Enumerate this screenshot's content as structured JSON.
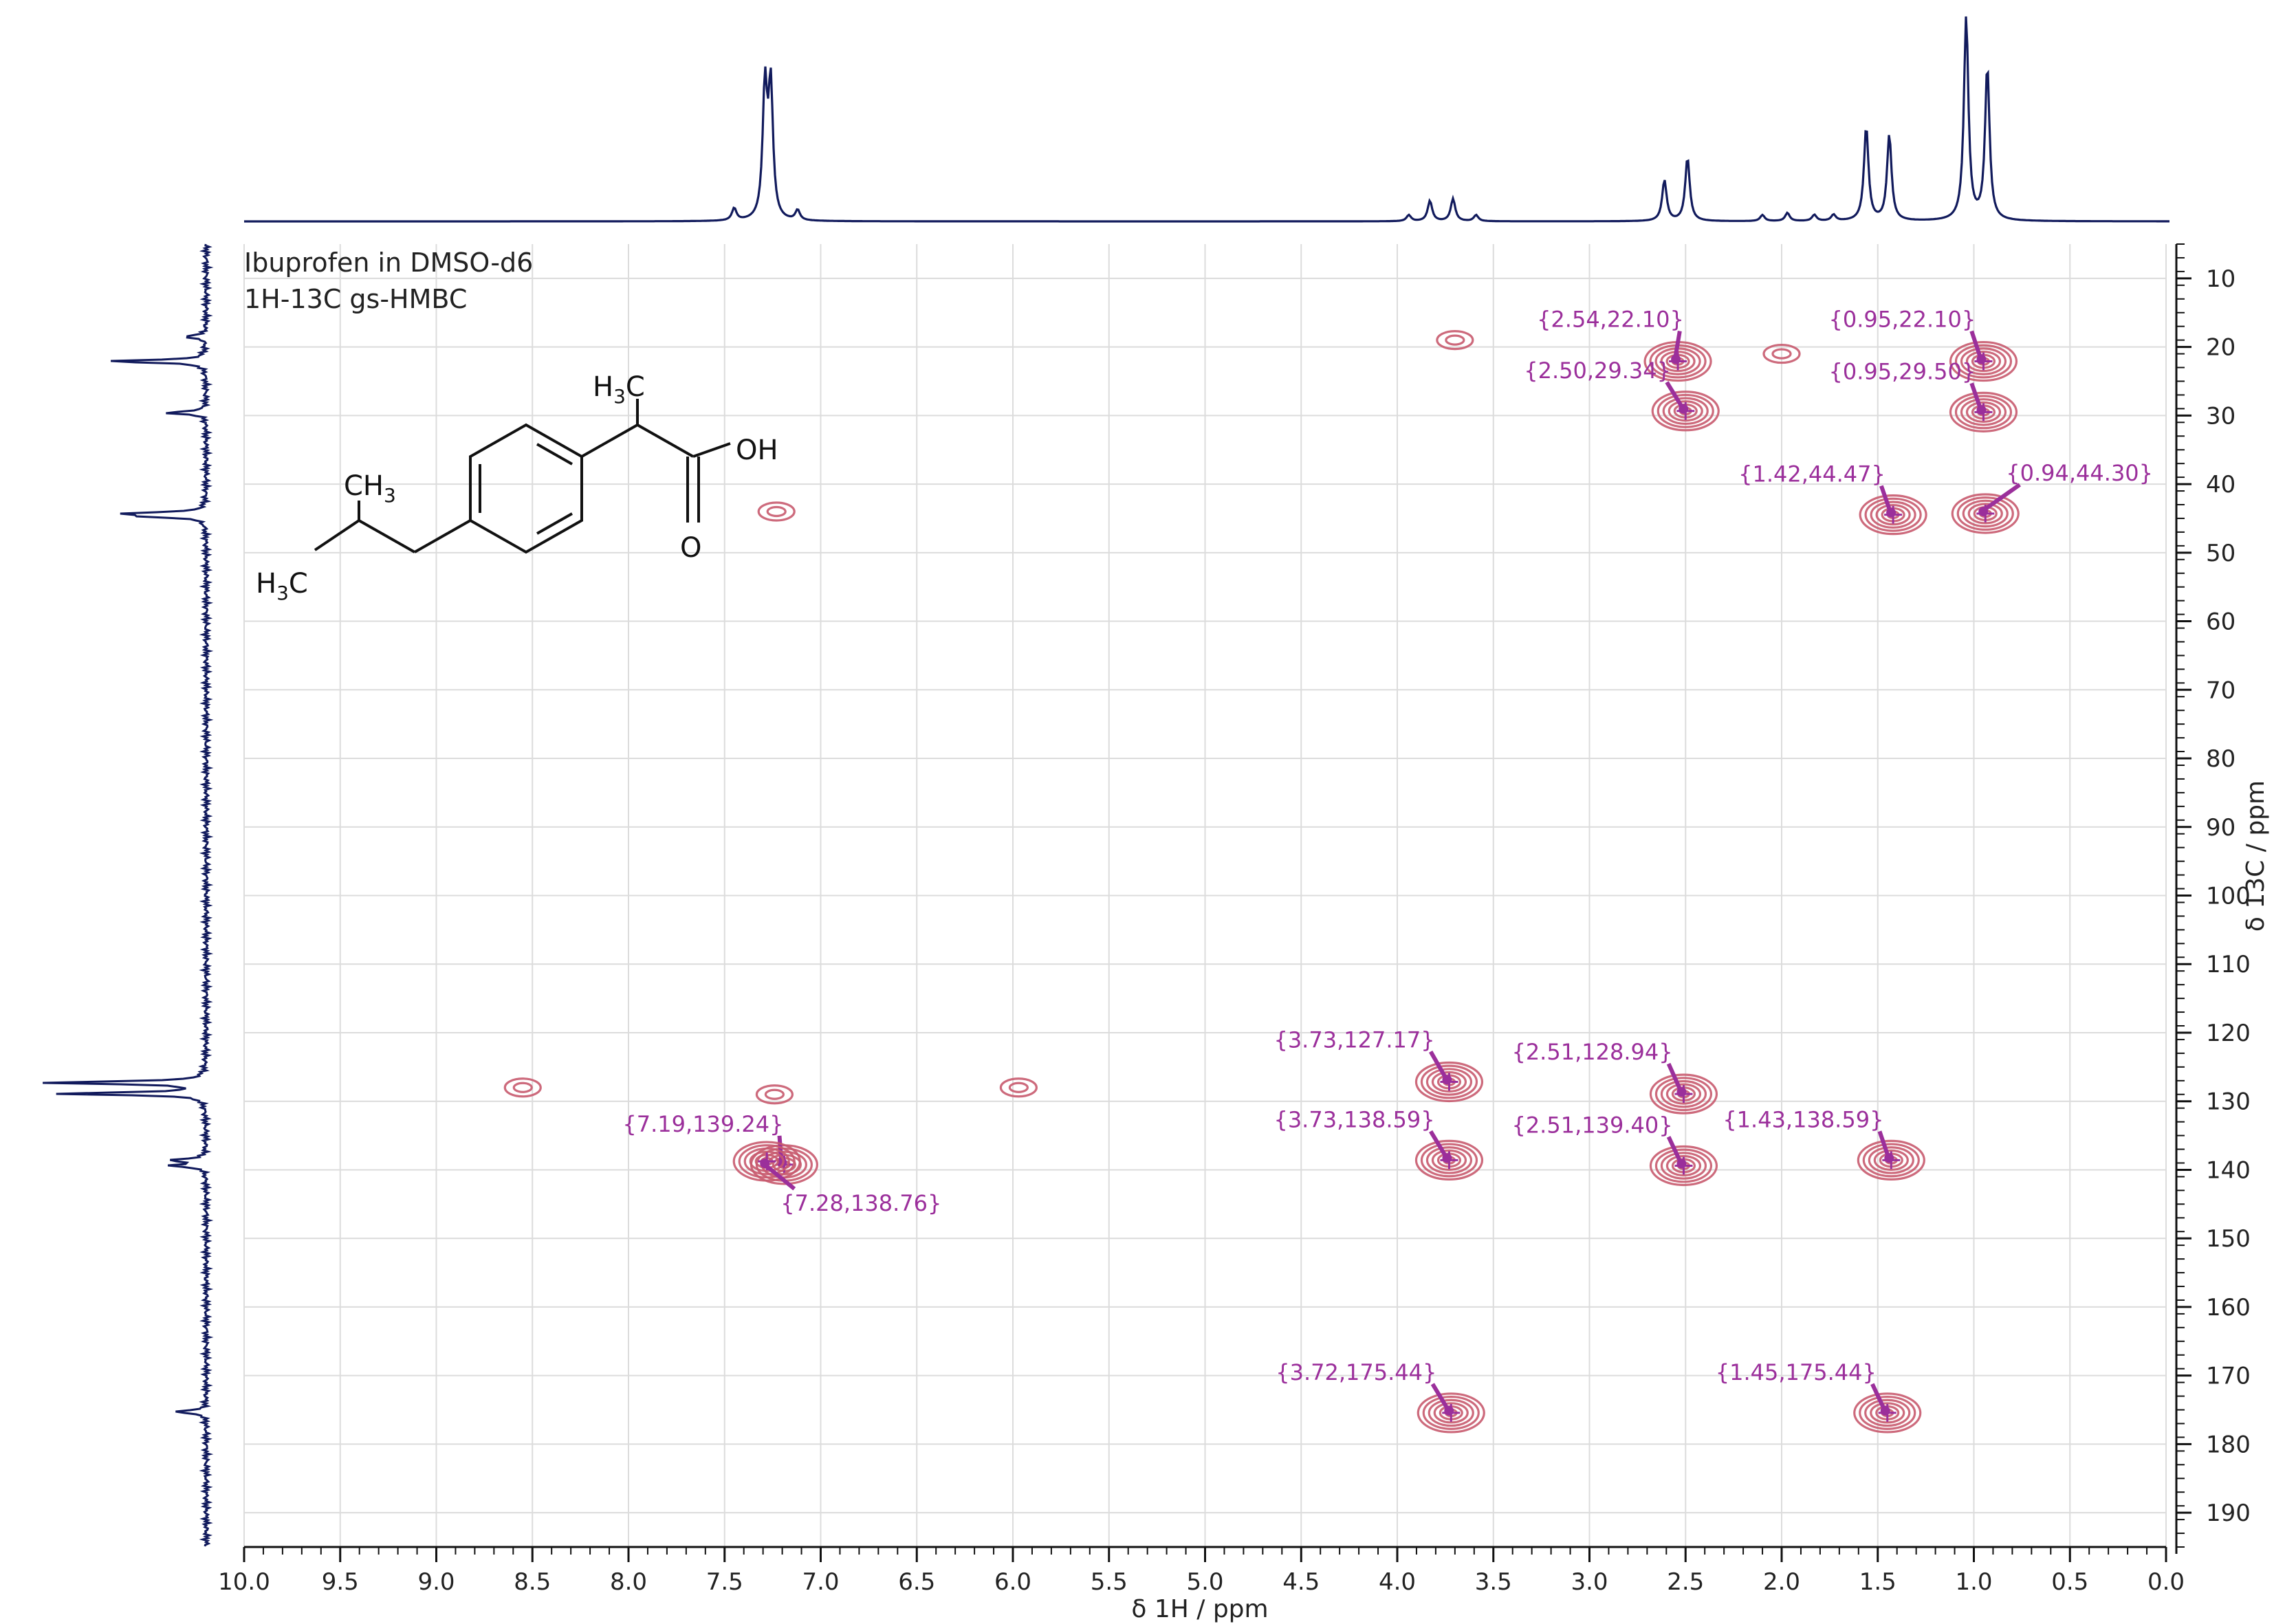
{
  "chart_data": {
    "type": "heatmap",
    "title": "Ibuprofen in DMSO-d6",
    "subtitle": "1H-13C gs-HMBC",
    "xlabel": "δ 1H / ppm",
    "ylabel": "δ 13C / ppm",
    "x_axis": {
      "range": [
        10.0,
        0.0
      ],
      "reversed": true,
      "ticks": [
        "10.0",
        "9.5",
        "9.0",
        "8.5",
        "8.0",
        "7.5",
        "7.0",
        "6.5",
        "6.0",
        "5.5",
        "5.0",
        "4.5",
        "4.0",
        "3.5",
        "3.0",
        "2.5",
        "2.0",
        "1.5",
        "1.0",
        "0.5",
        "0.0"
      ]
    },
    "y_axis": {
      "range": [
        5,
        195
      ],
      "side": "right",
      "ticks": [
        "10",
        "20",
        "30",
        "40",
        "50",
        "60",
        "70",
        "80",
        "90",
        "100",
        "110",
        "120",
        "130",
        "140",
        "150",
        "160",
        "170",
        "180",
        "190"
      ]
    },
    "grid": true,
    "annotated_peaks": [
      {
        "h": 2.54,
        "c": 22.1,
        "label": "{2.54,22.10}"
      },
      {
        "h": 0.95,
        "c": 22.1,
        "label": "{0.95,22.10}"
      },
      {
        "h": 2.5,
        "c": 29.34,
        "label": "{2.50,29.34}"
      },
      {
        "h": 0.95,
        "c": 29.5,
        "label": "{0.95,29.50}"
      },
      {
        "h": 1.42,
        "c": 44.47,
        "label": "{1.42,44.47}"
      },
      {
        "h": 0.94,
        "c": 44.3,
        "label": "{0.94,44.30}"
      },
      {
        "h": 3.73,
        "c": 127.17,
        "label": "{3.73,127.17}"
      },
      {
        "h": 2.51,
        "c": 128.94,
        "label": "{2.51,128.94}"
      },
      {
        "h": 3.73,
        "c": 138.59,
        "label": "{3.73,138.59}"
      },
      {
        "h": 2.51,
        "c": 139.4,
        "label": "{2.51,139.40}"
      },
      {
        "h": 1.43,
        "c": 138.59,
        "label": "{1.43,138.59}"
      },
      {
        "h": 7.19,
        "c": 139.24,
        "label": "{7.19,139.24}"
      },
      {
        "h": 7.28,
        "c": 138.76,
        "label": "{7.28,138.76}"
      },
      {
        "h": 3.72,
        "c": 175.44,
        "label": "{3.72,175.44}"
      },
      {
        "h": 1.45,
        "c": 175.44,
        "label": "{1.45,175.44}"
      }
    ],
    "artifact_contours": [
      {
        "h": 3.7,
        "c": 19.0
      },
      {
        "h": 2.0,
        "c": 21.0
      },
      {
        "h": 7.23,
        "c": 44.0
      },
      {
        "h": 8.55,
        "c": 128.0
      },
      {
        "h": 5.97,
        "c": 128.0
      },
      {
        "h": 7.24,
        "c": 129.0
      }
    ],
    "proton_projection_peaks": [
      {
        "ppm": 7.29,
        "height": 0.64
      },
      {
        "ppm": 7.26,
        "height": 0.64
      },
      {
        "ppm": 7.45,
        "height": 0.06
      },
      {
        "ppm": 7.12,
        "height": 0.05
      },
      {
        "ppm": 3.83,
        "height": 0.1
      },
      {
        "ppm": 3.71,
        "height": 0.11
      },
      {
        "ppm": 3.94,
        "height": 0.03
      },
      {
        "ppm": 3.59,
        "height": 0.03
      },
      {
        "ppm": 2.61,
        "height": 0.2
      },
      {
        "ppm": 2.49,
        "height": 0.31
      },
      {
        "ppm": 1.56,
        "height": 0.46
      },
      {
        "ppm": 1.44,
        "height": 0.42
      },
      {
        "ppm": 1.04,
        "height": 1.0
      },
      {
        "ppm": 0.93,
        "height": 0.75
      },
      {
        "ppm": 2.1,
        "height": 0.03
      },
      {
        "ppm": 1.97,
        "height": 0.04
      },
      {
        "ppm": 1.83,
        "height": 0.03
      },
      {
        "ppm": 1.73,
        "height": 0.03
      }
    ],
    "carbon_projection_peaks": [
      {
        "ppm": 22.1,
        "height": 0.6
      },
      {
        "ppm": 18.5,
        "height": 0.14
      },
      {
        "ppm": 29.6,
        "height": 0.25
      },
      {
        "ppm": 44.3,
        "height": 0.45
      },
      {
        "ppm": 44.7,
        "height": 0.32
      },
      {
        "ppm": 127.3,
        "height": 0.98
      },
      {
        "ppm": 128.9,
        "height": 0.88
      },
      {
        "ppm": 138.6,
        "height": 0.22
      },
      {
        "ppm": 139.4,
        "height": 0.22
      },
      {
        "ppm": 175.3,
        "height": 0.2
      }
    ],
    "colors": {
      "contour": "#c85a6e",
      "contour_core": "#9b2f9b",
      "projection": "#111a5c",
      "annotation": "#9b2f9b",
      "grid": "#dcdcdc"
    }
  },
  "molecule": {
    "name": "Ibuprofen",
    "labels": {
      "ch3_top_a": "H",
      "ch3_top_b": "3",
      "ch3_top_c": "C",
      "ch3_iso_a": "CH",
      "ch3_iso_b": "3",
      "h3c_a": "H",
      "h3c_b": "3",
      "h3c_c": "C",
      "oh": "OH",
      "o": "O"
    }
  }
}
